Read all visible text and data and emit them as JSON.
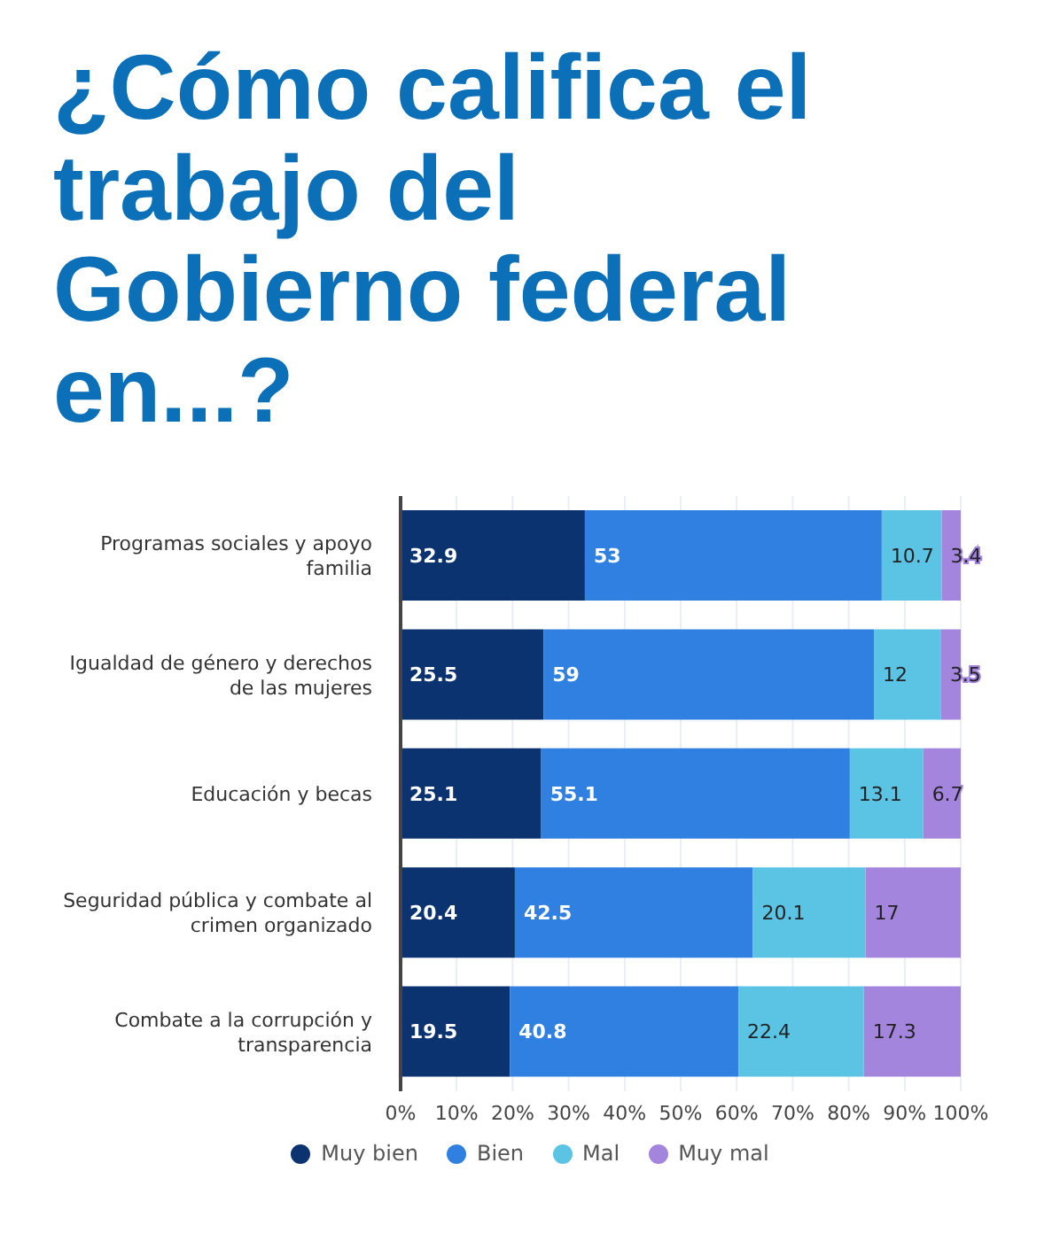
{
  "chart_data": {
    "type": "bar",
    "orientation": "horizontal",
    "stacked": true,
    "title": "¿Cómo califica el trabajo del Gobierno federal en...?",
    "categories": [
      "Programas sociales y apoyo familia",
      "Igualdad de género y derechos de las mujeres",
      "Educación y becas",
      "Seguridad pública y combate al crimen organizado",
      "Combate a la corrupción y transparencia"
    ],
    "series": [
      {
        "name": "Muy bien",
        "color": "#0b3370",
        "values": [
          32.9,
          25.5,
          25.1,
          20.4,
          19.5
        ]
      },
      {
        "name": "Bien",
        "color": "#2f80e0",
        "values": [
          53,
          59,
          55.1,
          42.5,
          40.8
        ]
      },
      {
        "name": "Mal",
        "color": "#5bc4e4",
        "values": [
          10.7,
          12,
          13.1,
          20.1,
          22.4
        ]
      },
      {
        "name": "Muy mal",
        "color": "#a485dd",
        "values": [
          3.4,
          3.5,
          6.7,
          17,
          17.3
        ]
      }
    ],
    "xlim": [
      0,
      100
    ],
    "xticks": [
      {
        "value": 0,
        "label": "0%"
      },
      {
        "value": 10,
        "label": "10%"
      },
      {
        "value": 20,
        "label": "20%"
      },
      {
        "value": 30,
        "label": "30%"
      },
      {
        "value": 40,
        "label": "40%"
      },
      {
        "value": 50,
        "label": "50%"
      },
      {
        "value": 60,
        "label": "60%"
      },
      {
        "value": 70,
        "label": "70%"
      },
      {
        "value": 80,
        "label": "80%"
      },
      {
        "value": 90,
        "label": "90%"
      },
      {
        "value": 100,
        "label": "100%"
      }
    ],
    "grid": "x",
    "data_labels": true,
    "legend": "bottom"
  }
}
